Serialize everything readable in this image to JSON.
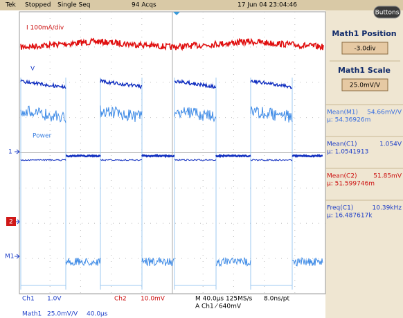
{
  "header": {
    "brand": "Tek",
    "state": "Stopped",
    "mode": "Single Seq",
    "acquisitions": "94 Acqs",
    "timestamp": "17 Jun 04 23:04:46"
  },
  "side_panel": {
    "button": "Buttons",
    "controls": [
      {
        "label": "Math1 Position",
        "value": "-3.0div"
      },
      {
        "label": "Math1 Scale",
        "value": "25.0mV/V"
      }
    ],
    "measurements": [
      {
        "name": "Mean(M1)",
        "value": "54.66mV/V",
        "mean": "µ: 54.36926m"
      },
      {
        "name": "Mean(C1)",
        "value": "1.054V",
        "mean": "µ: 1.0541913"
      },
      {
        "name": "Mean(C2)",
        "value": "51.85mV",
        "mean": "µ: 51.599746m"
      },
      {
        "name": "Freq(C1)",
        "value": "10.39kHz",
        "mean": "µ: 16.487617k"
      }
    ]
  },
  "waveform_labels": {
    "current": "I 100mA/div",
    "voltage": "V",
    "power": "Power"
  },
  "markers": [
    "1",
    "2",
    "M1"
  ],
  "status": {
    "ch1": "Ch1",
    "ch1_scale": "1.0V",
    "ch2": "Ch2",
    "ch2_scale": "10.0mV",
    "timebase": "M 40.0µs 125MS/s",
    "resolution": "8.0ns/pt",
    "trigger": "A Ch1 ⁄ 640mV",
    "math": "Math1",
    "math_scale": "25.0mV/V",
    "math_time": "40.0µs"
  }
}
